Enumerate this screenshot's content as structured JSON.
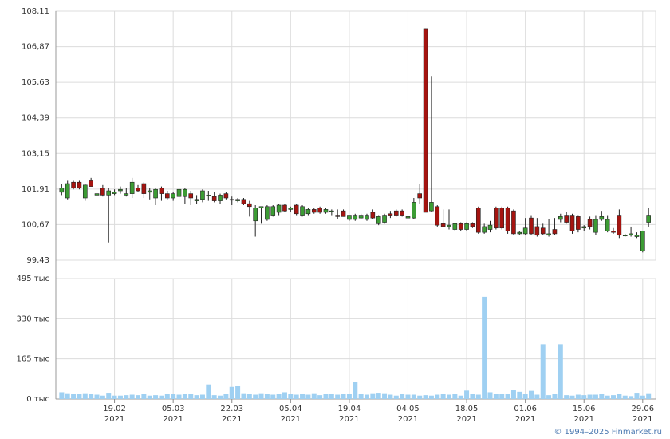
{
  "chart_data": {
    "type": "candlestick",
    "grid": true,
    "up_color": "#3c9c34",
    "down_color": "#a51410",
    "volume_color": "#9fd0f2",
    "xlim": [
      -1,
      101.2
    ],
    "xticks": [
      {
        "value": 9,
        "label": "19.02",
        "year": "2021"
      },
      {
        "value": 19,
        "label": "05.03",
        "year": "2021"
      },
      {
        "value": 29,
        "label": "22.03",
        "year": "2021"
      },
      {
        "value": 39,
        "label": "05.04",
        "year": "2021"
      },
      {
        "value": 49,
        "label": "19.04",
        "year": "2021"
      },
      {
        "value": 59,
        "label": "04.05",
        "year": "2021"
      },
      {
        "value": 69,
        "label": "18.05",
        "year": "2021"
      },
      {
        "value": 79,
        "label": "01.06",
        "year": "2021"
      },
      {
        "value": 89,
        "label": "15.06",
        "year": "2021"
      },
      {
        "value": 99,
        "label": "29.06",
        "year": "2021"
      }
    ],
    "ylim": [
      99.43,
      108.11
    ],
    "yticks": [
      {
        "value": 99.43,
        "label": "99,43"
      },
      {
        "value": 100.67,
        "label": "100,67"
      },
      {
        "value": 101.91,
        "label": "101,91"
      },
      {
        "value": 103.15,
        "label": "103,15"
      },
      {
        "value": 104.39,
        "label": "104,39"
      },
      {
        "value": 105.63,
        "label": "105,63"
      },
      {
        "value": 106.87,
        "label": "106,87"
      },
      {
        "value": 108.11,
        "label": "108,11"
      }
    ],
    "y2lim": [
      0,
      495
    ],
    "y2ticks": [
      {
        "value": 0,
        "label": "0 тыс"
      },
      {
        "value": 165,
        "label": "165 тыс"
      },
      {
        "value": 330,
        "label": "330 тыс"
      },
      {
        "value": 495,
        "label": "495 тыс"
      }
    ],
    "open": [
      101.8,
      101.6,
      102.15,
      102.15,
      101.6,
      102.2,
      101.7,
      101.95,
      101.7,
      101.75,
      101.85,
      101.7,
      101.75,
      101.95,
      102.1,
      101.8,
      101.6,
      101.95,
      101.75,
      101.6,
      101.65,
      101.65,
      101.75,
      101.5,
      101.55,
      101.7,
      101.65,
      101.5,
      101.75,
      101.55,
      101.5,
      101.55,
      101.4,
      100.8,
      101.25,
      100.85,
      101.0,
      101.1,
      101.35,
      101.2,
      101.35,
      101.0,
      101.05,
      101.2,
      101.25,
      101.1,
      101.15,
      101.0,
      101.15,
      100.85,
      100.85,
      100.9,
      100.85,
      101.1,
      100.7,
      100.75,
      101.05,
      101.15,
      101.15,
      100.9,
      100.9,
      101.75,
      107.5,
      101.15,
      101.3,
      100.7,
      100.6,
      100.5,
      100.7,
      100.5,
      100.7,
      101.25,
      100.4,
      100.5,
      101.25,
      101.25,
      101.25,
      101.15,
      100.35,
      100.35,
      100.9,
      100.6,
      100.55,
      100.3,
      100.5,
      100.85,
      101.0,
      101.0,
      100.95,
      100.55,
      100.85,
      100.4,
      100.85,
      100.45,
      100.45,
      101.0,
      100.3,
      100.3,
      100.25,
      99.75,
      100.75
    ],
    "high": [
      102.1,
      102.2,
      102.2,
      102.2,
      102.1,
      102.3,
      103.9,
      102.05,
      101.95,
      101.9,
      102.0,
      101.95,
      102.3,
      102.05,
      102.15,
      101.95,
      101.95,
      102.0,
      101.85,
      101.8,
      101.95,
      101.95,
      101.85,
      101.7,
      101.9,
      101.85,
      101.8,
      101.75,
      101.8,
      101.65,
      101.6,
      101.6,
      101.5,
      101.35,
      101.3,
      101.35,
      101.35,
      101.4,
      101.4,
      101.3,
      101.4,
      101.35,
      101.25,
      101.25,
      101.3,
      101.25,
      101.2,
      101.2,
      101.2,
      101.0,
      101.05,
      101.05,
      101.05,
      101.2,
      101.0,
      101.05,
      101.15,
      101.2,
      101.2,
      101.2,
      101.6,
      102.1,
      107.5,
      105.85,
      101.35,
      101.2,
      101.2,
      100.7,
      100.75,
      100.75,
      100.75,
      101.3,
      100.7,
      100.8,
      101.3,
      101.3,
      101.3,
      101.2,
      100.45,
      100.9,
      101.0,
      100.9,
      100.7,
      100.85,
      100.9,
      101.05,
      101.1,
      101.05,
      101.0,
      100.65,
      100.95,
      101.0,
      101.15,
      101.0,
      100.55,
      101.2,
      100.35,
      100.6,
      100.4,
      100.45,
      101.25
    ],
    "low": [
      101.7,
      101.55,
      101.9,
      101.9,
      101.5,
      102.0,
      101.5,
      101.65,
      100.05,
      101.7,
      101.75,
      101.65,
      101.6,
      101.8,
      101.6,
      101.55,
      101.35,
      101.5,
      101.55,
      101.5,
      101.55,
      101.4,
      101.35,
      101.4,
      101.45,
      101.5,
      101.45,
      101.4,
      101.55,
      101.35,
      101.45,
      101.35,
      100.95,
      100.25,
      100.7,
      100.8,
      100.95,
      101.0,
      101.1,
      101.1,
      101.0,
      100.95,
      101.0,
      101.05,
      101.05,
      101.05,
      101.0,
      100.85,
      100.95,
      100.8,
      100.8,
      100.85,
      100.8,
      100.85,
      100.65,
      100.7,
      100.9,
      100.95,
      100.95,
      100.85,
      100.85,
      101.4,
      101.15,
      101.1,
      100.6,
      100.6,
      100.5,
      100.45,
      100.45,
      100.45,
      100.55,
      100.35,
      100.35,
      100.4,
      100.5,
      100.5,
      100.35,
      100.3,
      100.3,
      100.3,
      100.3,
      100.25,
      100.3,
      100.25,
      100.3,
      100.75,
      100.7,
      100.35,
      100.4,
      100.45,
      100.5,
      100.3,
      100.8,
      100.4,
      100.35,
      100.2,
      100.25,
      100.25,
      100.2,
      99.7,
      100.6
    ],
    "close": [
      101.95,
      102.1,
      101.95,
      101.95,
      102.05,
      102.0,
      101.75,
      101.7,
      101.85,
      101.8,
      101.9,
      101.75,
      102.15,
      101.85,
      101.75,
      101.85,
      101.9,
      101.75,
      101.6,
      101.75,
      101.9,
      101.9,
      101.6,
      101.55,
      101.85,
      101.7,
      101.5,
      101.7,
      101.6,
      101.55,
      101.55,
      101.4,
      101.3,
      101.25,
      101.3,
      101.3,
      101.3,
      101.35,
      101.15,
      101.25,
      101.05,
      101.3,
      101.2,
      101.1,
      101.1,
      101.2,
      101.15,
      100.95,
      100.95,
      101.0,
      101.0,
      101.0,
      101.0,
      100.9,
      100.95,
      101.0,
      101.0,
      101.0,
      101.0,
      100.95,
      101.45,
      101.6,
      101.1,
      101.45,
      100.65,
      100.6,
      100.65,
      100.7,
      100.5,
      100.7,
      100.6,
      100.4,
      100.6,
      100.65,
      100.55,
      100.55,
      100.45,
      100.35,
      100.4,
      100.55,
      100.35,
      100.3,
      100.35,
      100.35,
      100.35,
      100.95,
      100.75,
      100.45,
      100.5,
      100.6,
      100.6,
      100.85,
      100.95,
      100.85,
      100.4,
      100.3,
      100.3,
      100.35,
      100.3,
      100.45,
      101.0
    ],
    "volume": [
      28,
      24,
      22,
      20,
      24,
      20,
      18,
      14,
      26,
      14,
      14,
      16,
      18,
      16,
      22,
      14,
      16,
      14,
      20,
      22,
      18,
      20,
      20,
      16,
      18,
      60,
      16,
      14,
      20,
      50,
      55,
      24,
      22,
      18,
      24,
      20,
      18,
      22,
      28,
      22,
      18,
      20,
      18,
      24,
      16,
      20,
      22,
      18,
      22,
      20,
      70,
      20,
      18,
      24,
      26,
      24,
      18,
      14,
      20,
      18,
      18,
      14,
      16,
      14,
      18,
      20,
      18,
      20,
      14,
      35,
      22,
      18,
      420,
      28,
      22,
      20,
      22,
      36,
      30,
      22,
      34,
      18,
      225,
      16,
      22,
      225,
      16,
      14,
      18,
      16,
      18,
      18,
      22,
      14,
      16,
      22,
      14,
      12,
      26,
      14,
      24
    ]
  },
  "footer": "© 1994–2025 Finmarket.ru"
}
